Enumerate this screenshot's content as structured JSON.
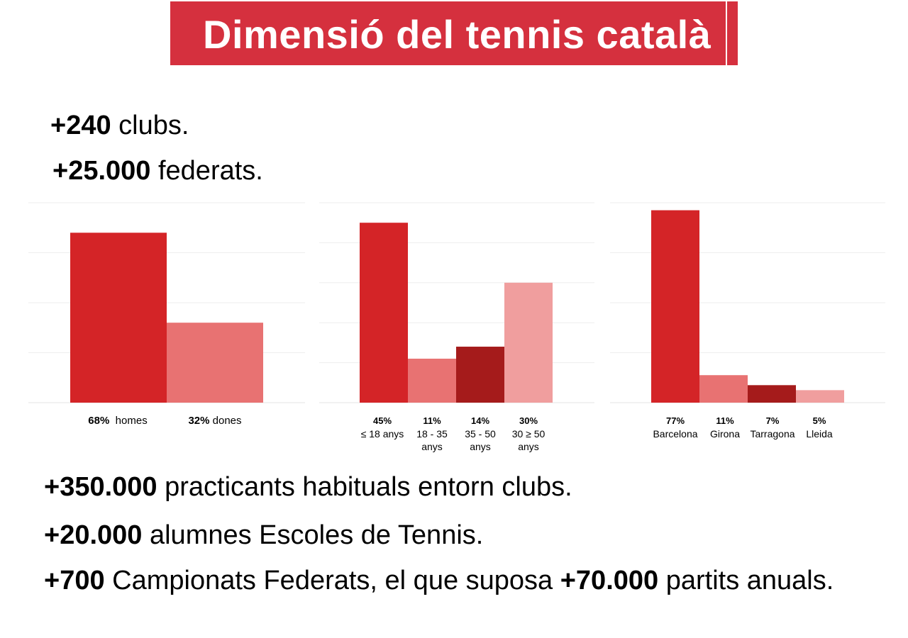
{
  "title": "Dimensió del tennis català",
  "colors": {
    "banner": "#d5303e",
    "red": "#d42427",
    "light_red": "#e87272",
    "dark_red": "#a51b1b",
    "pale_red": "#f09e9e",
    "grid": "#eeeeee"
  },
  "top_stats": [
    {
      "value": "+240",
      "text": " clubs."
    },
    {
      "value": "+25.000",
      "text": " federats."
    }
  ],
  "bottom_stats": [
    {
      "value": "+350.000",
      "text": " practicants habituals entorn clubs."
    },
    {
      "value": "+20.000",
      "text": " alumnes Escoles de Tennis."
    }
  ],
  "last_stat": {
    "value1": "+700",
    "text1": " Campionats Federats, el que suposa ",
    "value2": "+70.000",
    "text2": " partits anuals."
  },
  "chart_data": [
    {
      "type": "bar",
      "categories": [
        "homes",
        "dones"
      ],
      "values": [
        68,
        32
      ],
      "value_labels": [
        "68%",
        "32%"
      ],
      "ylim": [
        0,
        80
      ],
      "grid": true,
      "legend": "none"
    },
    {
      "type": "bar",
      "categories": [
        "≤ 18 anys",
        "18 - 35 anys",
        "35 - 50 anys",
        "30 ≥ 50 anys"
      ],
      "values": [
        45,
        11,
        14,
        30
      ],
      "value_labels": [
        "45%",
        "11%",
        "14%",
        "30%"
      ],
      "ylim": [
        0,
        50
      ],
      "grid": true,
      "legend": "none"
    },
    {
      "type": "bar",
      "categories": [
        "Barcelona",
        "Girona",
        "Tarragona",
        "Lleida"
      ],
      "values": [
        77,
        11,
        7,
        5
      ],
      "value_labels": [
        "77%",
        "11%",
        "7%",
        "5%"
      ],
      "ylim": [
        0,
        80
      ],
      "grid": true,
      "legend": "none"
    }
  ]
}
